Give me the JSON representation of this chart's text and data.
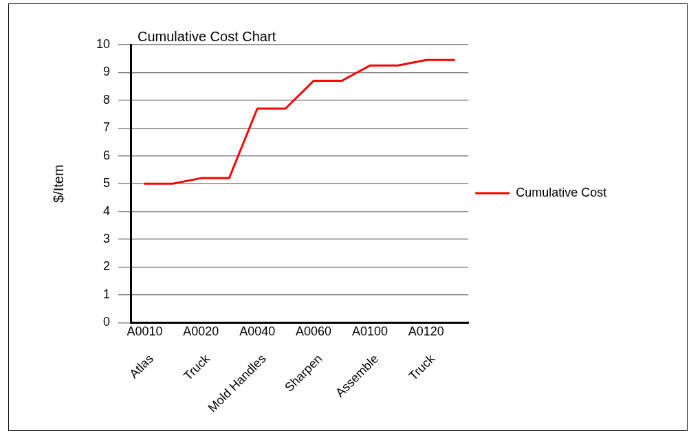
{
  "chart_data": {
    "type": "line",
    "title": "Cumulative Cost Chart",
    "ylabel": "$/Item",
    "categories": [
      "A0010",
      null,
      "A0020",
      null,
      "A0040",
      null,
      "A0060",
      null,
      "A0100",
      null,
      "A0120",
      null
    ],
    "ylim": [
      0,
      10
    ],
    "yticks": [
      0,
      1,
      2,
      3,
      4,
      5,
      6,
      7,
      8,
      9,
      10
    ],
    "series": [
      {
        "name": "Cumulative Cost",
        "color": "#ff0000",
        "values": [
          5,
          5,
          5.2,
          5.2,
          7.7,
          7.7,
          8.7,
          8.7,
          9.25,
          9.25,
          9.45,
          9.45
        ]
      }
    ],
    "annotations": [
      "Atlas",
      "Truck",
      "Mold Handles",
      "Sharpen",
      "Assemble",
      "Truck"
    ],
    "grid": "y",
    "legend": "right",
    "marker": "none",
    "line_style": "solid"
  }
}
